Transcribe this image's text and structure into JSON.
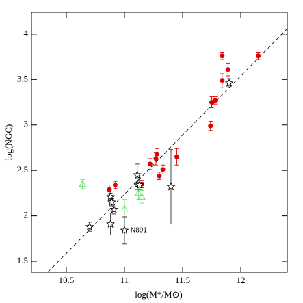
{
  "chart_data": {
    "type": "scatter",
    "x_label": "log(M*/M⊙)",
    "y_label": "log(NGC)",
    "xlim": [
      10.2,
      12.4
    ],
    "ylim": [
      1.38,
      4.24
    ],
    "xticks": [
      10.5,
      11,
      11.5,
      12
    ],
    "yticks": [
      1.5,
      2,
      2.5,
      3,
      3.5,
      4
    ],
    "series": [
      {
        "marker": "circle",
        "color": "#e00000",
        "x": [
          10.87,
          10.92,
          11.15,
          11.22,
          11.27,
          11.28,
          11.3,
          11.33,
          11.45,
          11.74,
          11.75,
          11.78,
          11.84,
          11.84,
          11.89,
          12.15
        ],
        "values": [
          2.29,
          2.34,
          2.35,
          2.57,
          2.63,
          2.68,
          2.44,
          2.51,
          2.65,
          2.99,
          3.25,
          3.27,
          3.49,
          3.76,
          3.61,
          3.76
        ],
        "errors": [
          0.05,
          0.04,
          0.04,
          0.06,
          0.07,
          0.06,
          0.04,
          0.05,
          0.09,
          0.05,
          0.06,
          0.04,
          0.08,
          0.04,
          0.07,
          0.04
        ]
      },
      {
        "marker": "triangle",
        "color": "#66dd66",
        "x": [
          10.64,
          11.0,
          11.12,
          11.15
        ],
        "values": [
          2.35,
          2.08,
          2.25,
          2.21
        ],
        "errors": [
          0.05,
          0.1,
          0.07,
          0.07
        ]
      },
      {
        "marker": "star",
        "color": "#000000",
        "x": [
          10.7,
          10.88,
          10.89,
          10.88,
          10.91,
          11.11,
          11.11,
          11.13,
          11.0,
          11.4,
          11.9
        ],
        "values": [
          1.88,
          2.21,
          2.15,
          1.91,
          2.07,
          2.45,
          2.35,
          2.34,
          1.84,
          2.32,
          3.46
        ],
        "errors": [
          0.05,
          0.04,
          0.04,
          0.12,
          0.05,
          0.12,
          0.06,
          0.05,
          0.15,
          0.41,
          0.05
        ]
      }
    ],
    "fit": {
      "x": [
        10.34,
        12.4
      ],
      "y": [
        1.38,
        4.06
      ]
    },
    "annotations": [
      {
        "text": "N891",
        "x": 11.0,
        "y": 1.84
      }
    ]
  }
}
